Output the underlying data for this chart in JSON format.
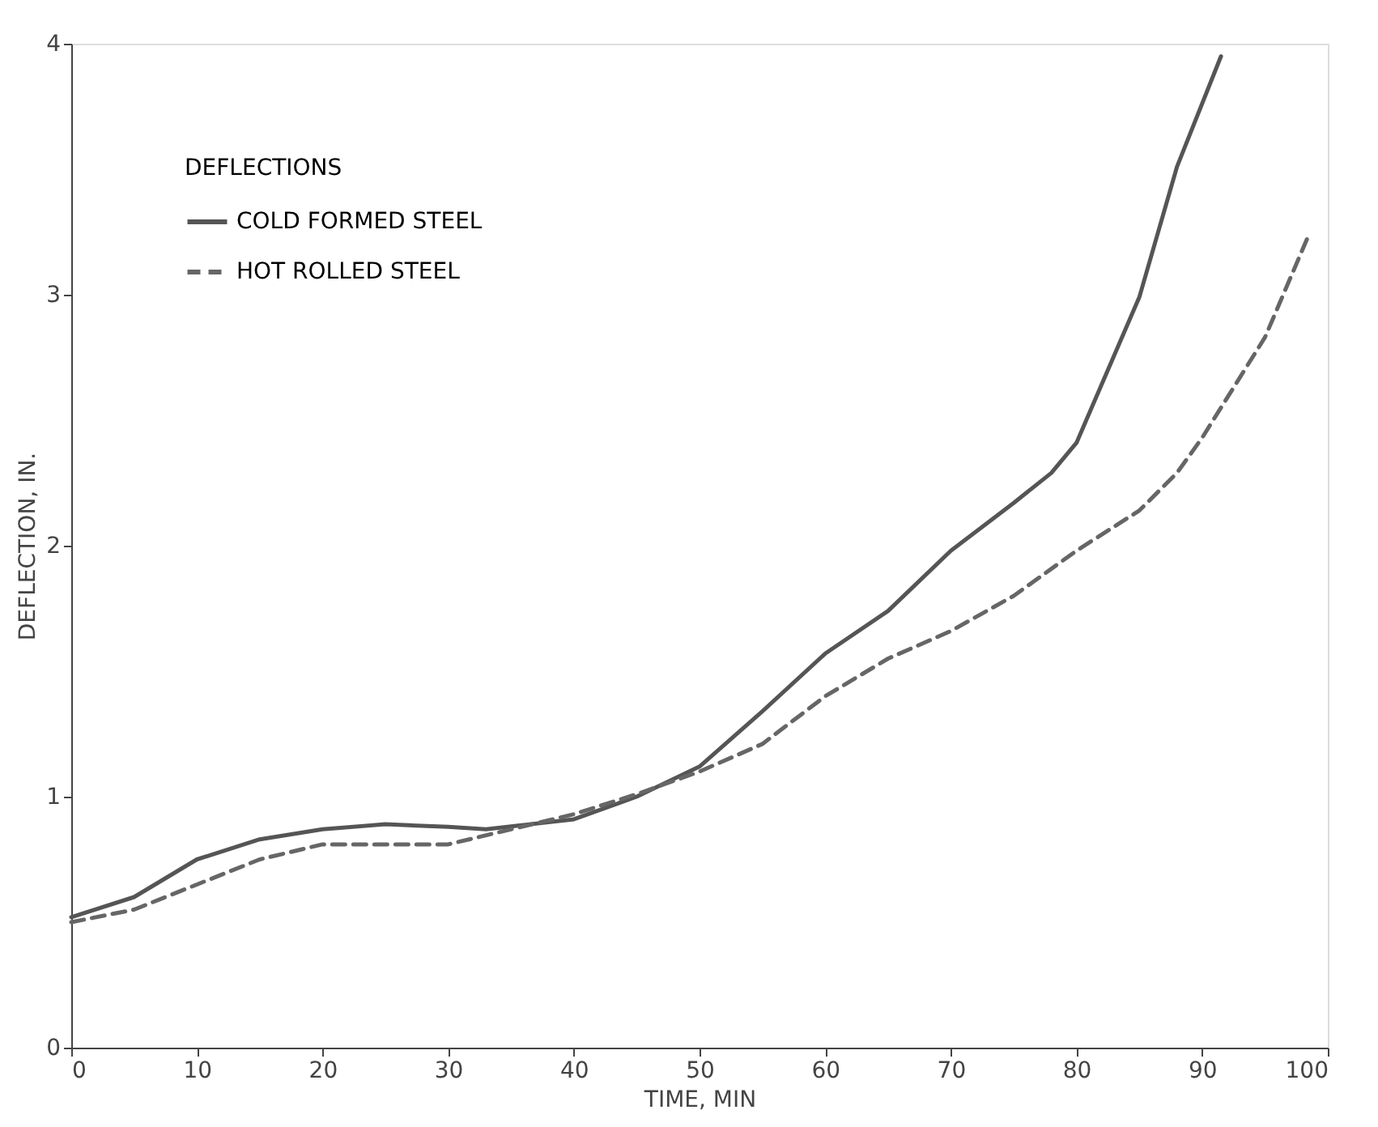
{
  "chart_data": {
    "type": "line",
    "xlabel": "TIME, MIN",
    "ylabel": "DEFLECTION, IN.",
    "legend_title": "DEFLECTIONS",
    "legend": "top left",
    "xlim": [
      0,
      100
    ],
    "xticks": [
      0,
      10,
      20,
      30,
      40,
      50,
      60,
      70,
      80,
      90,
      100
    ],
    "ylim": [
      0,
      4
    ],
    "yticks": [
      0,
      1,
      2,
      3,
      4
    ],
    "grid": false,
    "series": [
      {
        "name": "COLD FORMED STEEL",
        "color": "#555555",
        "line_style": "solid",
        "x": [
          0,
          5,
          10,
          15,
          20,
          25,
          30,
          33,
          40,
          45,
          50,
          55,
          60,
          65,
          70,
          75,
          78,
          80,
          85,
          88,
          91.5
        ],
        "values": [
          0.52,
          0.6,
          0.75,
          0.83,
          0.87,
          0.89,
          0.88,
          0.87,
          0.91,
          1.0,
          1.12,
          1.34,
          1.57,
          1.74,
          1.98,
          2.17,
          2.29,
          2.41,
          2.99,
          3.51,
          3.95
        ]
      },
      {
        "name": "HOT ROLLED STEEL",
        "color": "#666666",
        "line_style": "dashed",
        "x": [
          0,
          5,
          10,
          15,
          20,
          25,
          30,
          35,
          40,
          45,
          50,
          55,
          60,
          65,
          70,
          75,
          80,
          85,
          88,
          90,
          95,
          98.5
        ],
        "values": [
          0.5,
          0.55,
          0.65,
          0.75,
          0.81,
          0.81,
          0.81,
          0.87,
          0.93,
          1.01,
          1.1,
          1.21,
          1.4,
          1.55,
          1.66,
          1.8,
          1.98,
          2.14,
          2.29,
          2.43,
          2.83,
          3.24
        ]
      }
    ]
  }
}
